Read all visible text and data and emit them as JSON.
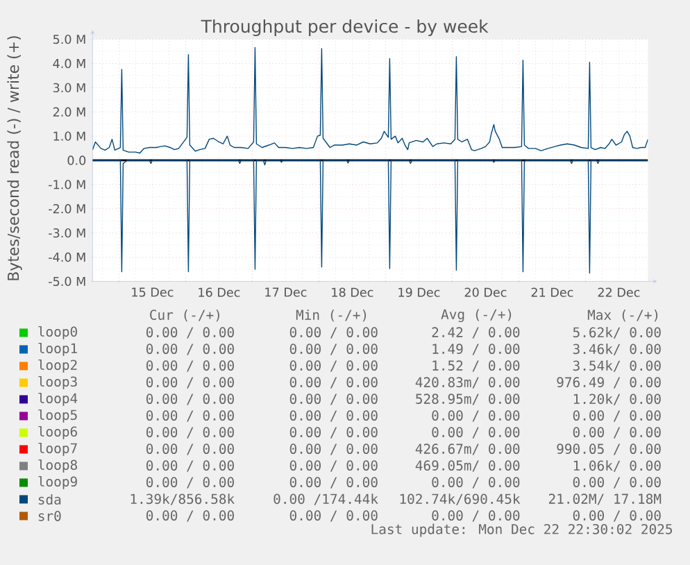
{
  "chart_data": {
    "type": "line",
    "title": "Throughput per device - by week",
    "ylabel": "Bytes/second read (-) / write (+)",
    "xlim": [
      "2025-12-14T14:30",
      "2025-12-22T22:30"
    ],
    "ylim": [
      -5000000,
      5000000
    ],
    "xticks": [
      {
        "value": "2025-12-15T00:00",
        "label": null
      },
      {
        "value": "2025-12-15T12:00",
        "label": "15 Dec"
      },
      {
        "value": "2025-12-16T00:00",
        "label": null
      },
      {
        "value": "2025-12-16T12:00",
        "label": "16 Dec"
      },
      {
        "value": "2025-12-17T00:00",
        "label": null
      },
      {
        "value": "2025-12-17T12:00",
        "label": "17 Dec"
      },
      {
        "value": "2025-12-18T00:00",
        "label": null
      },
      {
        "value": "2025-12-18T12:00",
        "label": "18 Dec"
      },
      {
        "value": "2025-12-19T00:00",
        "label": null
      },
      {
        "value": "2025-12-19T12:00",
        "label": "19 Dec"
      },
      {
        "value": "2025-12-20T00:00",
        "label": null
      },
      {
        "value": "2025-12-20T12:00",
        "label": "20 Dec"
      },
      {
        "value": "2025-12-21T00:00",
        "label": null
      },
      {
        "value": "2025-12-21T12:00",
        "label": "21 Dec"
      },
      {
        "value": "2025-12-22T00:00",
        "label": null
      },
      {
        "value": "2025-12-22T12:00",
        "label": "22 Dec"
      }
    ],
    "yticks": [
      {
        "value": -5000000,
        "label": "-5.0 M"
      },
      {
        "value": -4000000,
        "label": "-4.0 M"
      },
      {
        "value": -3000000,
        "label": "-3.0 M"
      },
      {
        "value": -2000000,
        "label": "-2.0 M"
      },
      {
        "value": -1000000,
        "label": "-1.0 M"
      },
      {
        "value": 0,
        "label": "0.0"
      },
      {
        "value": 1000000,
        "label": "1.0 M"
      },
      {
        "value": 2000000,
        "label": "2.0 M"
      },
      {
        "value": 3000000,
        "label": "3.0 M"
      },
      {
        "value": 4000000,
        "label": "4.0 M"
      },
      {
        "value": 5000000,
        "label": "5.0 M"
      }
    ],
    "grid": true,
    "legend": "bottom",
    "ref_lines": [
      {
        "axis": "y",
        "value": 0,
        "color": "#000000"
      }
    ],
    "series": [
      {
        "name": "loop0",
        "color": "#00cc00"
      },
      {
        "name": "loop1",
        "color": "#0066b3"
      },
      {
        "name": "loop2",
        "color": "#ff8000"
      },
      {
        "name": "loop3",
        "color": "#ffcc00"
      },
      {
        "name": "loop4",
        "color": "#330099"
      },
      {
        "name": "loop5",
        "color": "#990099"
      },
      {
        "name": "loop6",
        "color": "#ccff00"
      },
      {
        "name": "loop7",
        "color": "#ff0000"
      },
      {
        "name": "loop8",
        "color": "#808080"
      },
      {
        "name": "loop9",
        "color": "#008f00"
      },
      {
        "name": "sda",
        "color": "#00487d",
        "x": [
          "2025-12-14T14:30",
          "2025-12-14T15:30",
          "2025-12-14T17:30",
          "2025-12-14T19:00",
          "2025-12-14T20:30",
          "2025-12-14T21:30",
          "2025-12-14T22:30",
          "2025-12-15T00:30",
          "2025-12-15T01:00",
          "2025-12-15T01:30",
          "2025-12-15T03:30",
          "2025-12-15T06:00",
          "2025-12-15T07:30",
          "2025-12-15T09:00",
          "2025-12-15T11:00",
          "2025-12-15T13:30",
          "2025-12-15T15:00",
          "2025-12-15T16:30",
          "2025-12-15T18:30",
          "2025-12-15T20:00",
          "2025-12-15T21:30",
          "2025-12-15T23:00",
          "2025-12-16T00:30",
          "2025-12-16T01:00",
          "2025-12-16T01:30",
          "2025-12-16T03:30",
          "2025-12-16T05:00",
          "2025-12-16T07:00",
          "2025-12-16T08:30",
          "2025-12-16T10:00",
          "2025-12-16T12:00",
          "2025-12-16T13:30",
          "2025-12-16T15:00",
          "2025-12-16T16:00",
          "2025-12-16T17:30",
          "2025-12-16T20:00",
          "2025-12-16T22:30",
          "2025-12-17T00:30",
          "2025-12-17T01:00",
          "2025-12-17T01:30",
          "2025-12-17T03:30",
          "2025-12-17T06:00",
          "2025-12-17T08:00",
          "2025-12-17T09:30",
          "2025-12-17T12:00",
          "2025-12-17T14:30",
          "2025-12-17T17:00",
          "2025-12-17T19:30",
          "2025-12-17T22:00",
          "2025-12-17T23:30",
          "2025-12-18T00:30",
          "2025-12-18T01:00",
          "2025-12-18T01:30",
          "2025-12-18T04:00",
          "2025-12-18T05:30",
          "2025-12-18T08:30",
          "2025-12-18T11:00",
          "2025-12-18T13:30",
          "2025-12-18T16:00",
          "2025-12-18T18:30",
          "2025-12-18T21:00",
          "2025-12-18T22:30",
          "2025-12-18T23:30",
          "2025-12-19T01:00",
          "2025-12-19T01:30",
          "2025-12-19T02:00",
          "2025-12-19T03:30",
          "2025-12-19T04:30",
          "2025-12-19T06:00",
          "2025-12-19T07:00",
          "2025-12-19T08:00",
          "2025-12-19T08:30",
          "2025-12-19T11:00",
          "2025-12-19T13:30",
          "2025-12-19T15:00",
          "2025-12-19T17:00",
          "2025-12-19T18:30",
          "2025-12-19T21:00",
          "2025-12-19T23:30",
          "2025-12-20T01:00",
          "2025-12-20T01:30",
          "2025-12-20T02:00",
          "2025-12-20T03:30",
          "2025-12-20T05:30",
          "2025-12-20T07:00",
          "2025-12-20T08:00",
          "2025-12-20T10:30",
          "2025-12-20T12:00",
          "2025-12-20T13:30",
          "2025-12-20T14:00",
          "2025-12-20T15:00",
          "2025-12-20T15:30",
          "2025-12-20T17:00",
          "2025-12-20T18:00",
          "2025-12-20T20:00",
          "2025-12-20T22:30",
          "2025-12-21T01:00",
          "2025-12-21T01:30",
          "2025-12-21T02:00",
          "2025-12-21T03:30",
          "2025-12-21T06:00",
          "2025-12-21T08:00",
          "2025-12-21T10:30",
          "2025-12-21T13:00",
          "2025-12-21T15:00",
          "2025-12-21T17:30",
          "2025-12-21T20:00",
          "2025-12-21T22:30",
          "2025-12-22T01:00",
          "2025-12-22T01:30",
          "2025-12-22T02:00",
          "2025-12-22T03:30",
          "2025-12-22T05:30",
          "2025-12-22T07:00",
          "2025-12-22T08:30",
          "2025-12-22T09:30",
          "2025-12-22T11:00",
          "2025-12-22T13:00",
          "2025-12-22T14:00",
          "2025-12-22T15:00",
          "2025-12-22T16:00",
          "2025-12-22T17:00",
          "2025-12-22T18:30",
          "2025-12-22T20:00",
          "2025-12-22T21:30",
          "2025-12-22T22:30"
        ],
        "values": [
          440000,
          760000,
          490000,
          420000,
          530000,
          870000,
          420000,
          530000,
          3760000,
          420000,
          340000,
          340000,
          300000,
          490000,
          530000,
          530000,
          570000,
          600000,
          530000,
          440000,
          490000,
          720000,
          950000,
          4370000,
          630000,
          380000,
          440000,
          490000,
          870000,
          910000,
          760000,
          680000,
          1000000,
          630000,
          530000,
          530000,
          490000,
          760000,
          4660000,
          680000,
          530000,
          630000,
          720000,
          530000,
          530000,
          490000,
          530000,
          490000,
          530000,
          1000000,
          1040000,
          4620000,
          910000,
          530000,
          630000,
          630000,
          680000,
          630000,
          760000,
          680000,
          720000,
          910000,
          1200000,
          950000,
          4200000,
          870000,
          1000000,
          720000,
          910000,
          630000,
          440000,
          720000,
          820000,
          760000,
          910000,
          570000,
          680000,
          720000,
          680000,
          870000,
          4280000,
          870000,
          760000,
          870000,
          440000,
          400000,
          490000,
          570000,
          760000,
          1060000,
          1480000,
          1200000,
          870000,
          530000,
          530000,
          530000,
          570000,
          4140000,
          630000,
          490000,
          490000,
          400000,
          490000,
          570000,
          630000,
          680000,
          630000,
          530000,
          490000,
          4050000,
          530000,
          440000,
          530000,
          490000,
          680000,
          870000,
          630000,
          760000,
          1060000,
          1200000,
          1000000,
          530000,
          490000,
          530000,
          530000,
          870000
        ]
      },
      {
        "name": "sr0",
        "color": "#b35a00"
      },
      {
        "color": "#00487d",
        "x": [
          "2025-12-14T14:30",
          "2025-12-15T00:30",
          "2025-12-15T01:00",
          "2025-12-15T01:30",
          "2025-12-15T03:00",
          "2025-12-15T11:00",
          "2025-12-15T11:30",
          "2025-12-15T12:00",
          "2025-12-16T00:30",
          "2025-12-16T01:00",
          "2025-12-16T01:30",
          "2025-12-16T19:00",
          "2025-12-16T19:30",
          "2025-12-16T20:00",
          "2025-12-17T00:30",
          "2025-12-17T01:00",
          "2025-12-17T01:30",
          "2025-12-17T04:00",
          "2025-12-17T04:30",
          "2025-12-17T05:00",
          "2025-12-17T10:00",
          "2025-12-17T10:30",
          "2025-12-17T11:00",
          "2025-12-18T00:30",
          "2025-12-18T01:00",
          "2025-12-18T01:30",
          "2025-12-18T10:00",
          "2025-12-18T10:30",
          "2025-12-18T11:00",
          "2025-12-19T01:00",
          "2025-12-19T01:30",
          "2025-12-19T02:00",
          "2025-12-19T08:30",
          "2025-12-19T09:00",
          "2025-12-19T09:30",
          "2025-12-20T01:00",
          "2025-12-20T01:30",
          "2025-12-20T02:00",
          "2025-12-20T14:30",
          "2025-12-20T15:00",
          "2025-12-20T15:30",
          "2025-12-21T01:00",
          "2025-12-21T01:30",
          "2025-12-21T02:00",
          "2025-12-21T02:30",
          "2025-12-21T18:30",
          "2025-12-21T19:00",
          "2025-12-21T19:30",
          "2025-12-22T01:00",
          "2025-12-22T01:30",
          "2025-12-22T02:00",
          "2025-12-22T04:00",
          "2025-12-22T04:30",
          "2025-12-22T05:00",
          "2025-12-22T22:30"
        ],
        "values": [
          0,
          0,
          -4600000,
          -130000,
          0,
          0,
          -130000,
          0,
          0,
          -4600000,
          0,
          0,
          -130000,
          0,
          0,
          -4500000,
          0,
          0,
          -190000,
          0,
          0,
          -80000,
          0,
          0,
          -4410000,
          0,
          0,
          -110000,
          0,
          0,
          -4470000,
          0,
          0,
          -130000,
          0,
          0,
          -4540000,
          0,
          0,
          -80000,
          0,
          0,
          -4600000,
          -60000,
          0,
          0,
          -130000,
          0,
          0,
          -4660000,
          0,
          0,
          -130000,
          0,
          0
        ]
      }
    ],
    "annotations": [
      "Cur (-/+)",
      "Min (-/+)",
      "Avg (-/+)",
      "Max (-/+)",
      "0.00 / 0.00",
      "0.00 / 0.00",
      "2.42 / 0.00",
      "5.62k/ 0.00",
      "0.00 / 0.00",
      "0.00 / 0.00",
      "1.49 / 0.00",
      "3.46k/ 0.00",
      "0.00 / 0.00",
      "0.00 / 0.00",
      "1.52 / 0.00",
      "3.54k/ 0.00",
      "0.00 / 0.00",
      "0.00 / 0.00",
      "420.83m/ 0.00",
      "976.49 / 0.00",
      "0.00 / 0.00",
      "0.00 / 0.00",
      "528.95m/ 0.00",
      "1.20k/ 0.00",
      "0.00 / 0.00",
      "0.00 / 0.00",
      "0.00 / 0.00",
      "0.00 / 0.00",
      "0.00 / 0.00",
      "0.00 / 0.00",
      "0.00 / 0.00",
      "0.00 / 0.00",
      "0.00 / 0.00",
      "0.00 / 0.00",
      "426.67m/ 0.00",
      "990.05 / 0.00",
      "0.00 / 0.00",
      "0.00 / 0.00",
      "469.05m/ 0.00",
      "1.06k/ 0.00",
      "0.00 / 0.00",
      "0.00 / 0.00",
      "0.00 / 0.00",
      "0.00 / 0.00",
      "1.39k/856.58k",
      "0.00 /174.44k",
      "102.74k/690.45k",
      "21.02M/ 17.18M",
      "0.00 / 0.00",
      "0.00 / 0.00",
      "0.00 / 0.00",
      "0.00 / 0.00",
      "Last update: Mon Dec 22 22:30:02 2025"
    ]
  }
}
